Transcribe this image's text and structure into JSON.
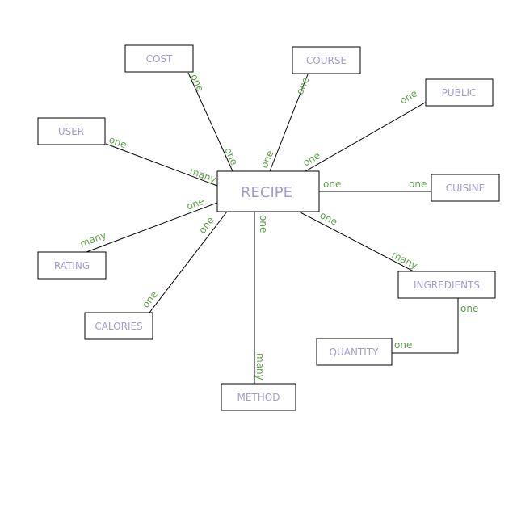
{
  "entities": {
    "recipe": "RECIPE",
    "cost": "COST",
    "course": "COURSE",
    "public": "PUBLIC",
    "user": "USER",
    "cuisine": "CUISINE",
    "rating": "RATING",
    "ingredients": "INGREDIENTS",
    "calories": "CALORIES",
    "quantity": "QUANTITY",
    "method": "METHOD"
  },
  "relationships": {
    "cost": {
      "entity_end": "one",
      "recipe_end": "one"
    },
    "course": {
      "entity_end": "one",
      "recipe_end": "one"
    },
    "public": {
      "entity_end": "one",
      "recipe_end": "one"
    },
    "user": {
      "entity_end": "one",
      "recipe_end": "many"
    },
    "cuisine": {
      "entity_end": "one",
      "recipe_end": "one"
    },
    "rating": {
      "entity_end": "many",
      "recipe_end": "one"
    },
    "calories": {
      "entity_end": "one",
      "recipe_end": "one"
    },
    "method": {
      "entity_end": "many",
      "recipe_end": "one"
    },
    "ingredients": {
      "entity_end": "many",
      "recipe_end": "one"
    },
    "quantity": {
      "ingredients_end": "one",
      "quantity_end": "one"
    }
  },
  "colors": {
    "entity_text": "#a59bd1",
    "cardinality_text": "#5ea04a",
    "lines": "#000000"
  }
}
